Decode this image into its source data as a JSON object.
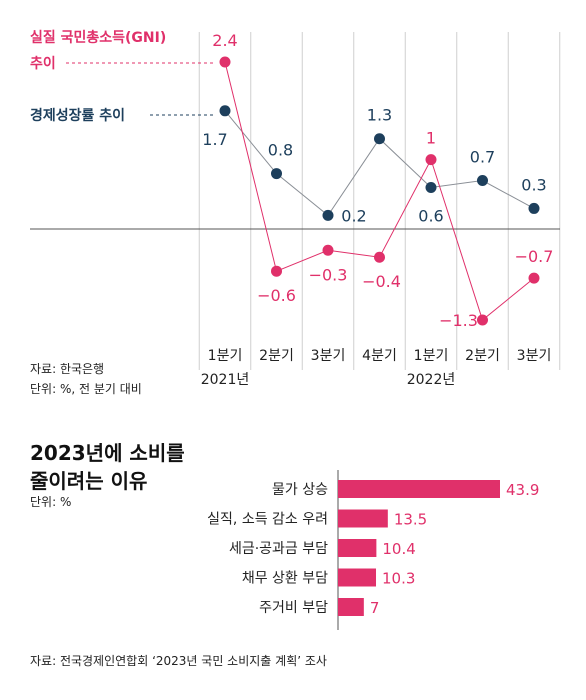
{
  "colors": {
    "gni": "#e0306a",
    "growth": "#1d3f5c",
    "grid": "#cfcfcf",
    "bar": "#e0306a"
  },
  "chart_data": [
    {
      "type": "line",
      "title": "",
      "legend": [
        {
          "key": "gni",
          "lines": [
            "실질 국민총소득(GNI)",
            "추이"
          ]
        },
        {
          "key": "growth",
          "lines": [
            "경제성장률 추이"
          ]
        }
      ],
      "categories": [
        "1분기",
        "2분기",
        "3분기",
        "4분기",
        "1분기",
        "2분기",
        "3분기"
      ],
      "year_labels": [
        {
          "index": 0,
          "text": "2021년"
        },
        {
          "index": 4,
          "text": "2022년"
        }
      ],
      "series": [
        {
          "key": "gni",
          "name": "실질 국민총소득(GNI) 추이",
          "values": [
            2.4,
            -0.6,
            -0.3,
            -0.4,
            1,
            -1.3,
            -0.7
          ],
          "labels": [
            "2.4",
            "−0.6",
            "−0.3",
            "−0.4",
            "1",
            "−1.3",
            "−0.7"
          ]
        },
        {
          "key": "growth",
          "name": "경제성장률 추이",
          "values": [
            1.7,
            0.8,
            0.2,
            1.3,
            0.6,
            0.7,
            0.3
          ],
          "labels": [
            "1.7",
            "0.8",
            "0.2",
            "1.3",
            "0.6",
            "0.7",
            "0.3"
          ]
        }
      ],
      "ylim": [
        -1.3,
        2.4
      ],
      "source_lines": [
        "자료: 한국은행",
        "단위: %, 전 분기 대비"
      ]
    },
    {
      "type": "bar",
      "orientation": "horizontal",
      "title_lines": [
        "2023년에 소비를",
        "줄이려는 이유"
      ],
      "unit": "단위: %",
      "categories": [
        "물가 상승",
        "실직, 소득 감소 우려",
        "세금·공과금 부담",
        "채무 상환 부담",
        "주거비 부담"
      ],
      "values": [
        43.9,
        13.5,
        10.4,
        10.3,
        7
      ],
      "value_labels": [
        "43.9",
        "13.5",
        "10.4",
        "10.3",
        "7"
      ],
      "xlim": [
        0,
        43.9
      ]
    }
  ],
  "source2": "자료: 전국경제인연합회 ‘2023년 국민 소비지출 계획’ 조사"
}
